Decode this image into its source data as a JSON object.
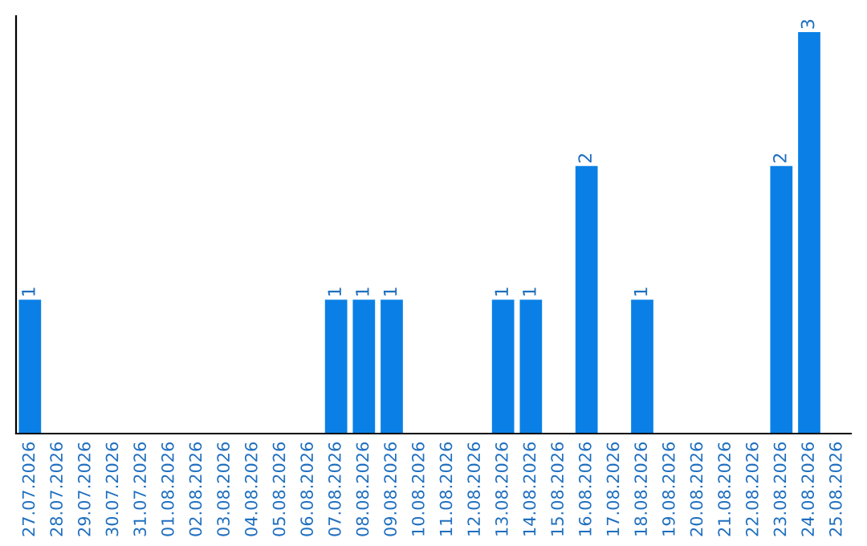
{
  "chart_data": {
    "type": "bar",
    "categories": [
      "27.07.2026",
      "28.07.2026",
      "29.07.2026",
      "30.07.2026",
      "31.07.2026",
      "01.08.2026",
      "02.08.2026",
      "03.08.2026",
      "04.08.2026",
      "05.08.2026",
      "06.08.2026",
      "07.08.2026",
      "08.08.2026",
      "09.08.2026",
      "10.08.2026",
      "11.08.2026",
      "12.08.2026",
      "13.08.2026",
      "14.08.2026",
      "15.08.2026",
      "16.08.2026",
      "17.08.2026",
      "18.08.2026",
      "19.08.2026",
      "20.08.2026",
      "21.08.2026",
      "22.08.2026",
      "23.08.2026",
      "24.08.2026",
      "25.08.2026"
    ],
    "values": [
      1,
      null,
      null,
      null,
      null,
      null,
      null,
      null,
      null,
      null,
      null,
      1,
      1,
      1,
      null,
      null,
      null,
      1,
      1,
      null,
      2,
      null,
      1,
      null,
      null,
      null,
      null,
      2,
      3,
      null
    ],
    "color": "#0a80e6",
    "data_labels": true,
    "tick_labels": "x",
    "grid": false,
    "legend": false
  }
}
